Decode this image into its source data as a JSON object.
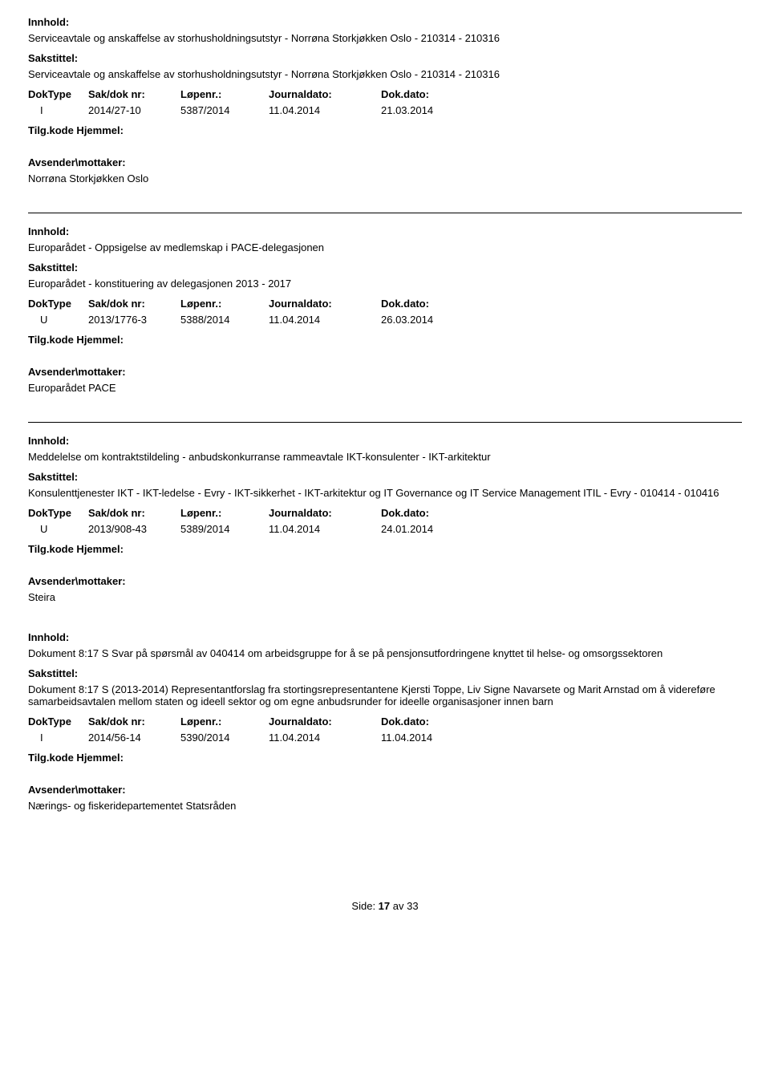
{
  "labels": {
    "innhold": "Innhold:",
    "sakstittel": "Sakstittel:",
    "doktype": "DokType",
    "sakdok": "Sak/dok nr:",
    "lopenr": "Løpenr.:",
    "journaldato": "Journaldato:",
    "dokdato": "Dok.dato:",
    "tilgkode": "Tilg.kode",
    "hjemmel": "Hjemmel:",
    "avsender": "Avsender\\mottaker:"
  },
  "entries": [
    {
      "innhold": "Serviceavtale og anskaffelse av storhusholdningsutstyr - Norrøna Storkjøkken Oslo - 210314 - 210316",
      "sakstittel": "Serviceavtale og anskaffelse av storhusholdningsutstyr - Norrøna Storkjøkken Oslo - 210314 - 210316",
      "doktype": "I",
      "sakdok": "2014/27-10",
      "lopenr": "5387/2014",
      "journaldato": "11.04.2014",
      "dokdato": "21.03.2014",
      "avsender": "Norrøna Storkjøkken Oslo"
    },
    {
      "innhold": "Europarådet - Oppsigelse av medlemskap i PACE-delegasjonen",
      "sakstittel": "Europarådet - konstituering av delegasjonen 2013 - 2017",
      "doktype": "U",
      "sakdok": "2013/1776-3",
      "lopenr": "5388/2014",
      "journaldato": "11.04.2014",
      "dokdato": "26.03.2014",
      "avsender": "Europarådet PACE"
    },
    {
      "innhold": "Meddelelse om kontraktstildeling - anbudskonkurranse rammeavtale IKT-konsulenter - IKT-arkitektur",
      "sakstittel": "Konsulenttjenester IKT - IKT-ledelse - Evry -  IKT-sikkerhet - IKT-arkitektur og IT Governance og IT Service Management ITIL  - Evry  - 010414 - 010416",
      "doktype": "U",
      "sakdok": "2013/908-43",
      "lopenr": "5389/2014",
      "journaldato": "11.04.2014",
      "dokdato": "24.01.2014",
      "avsender": "Steira"
    },
    {
      "innhold": "Dokument 8:17 S Svar på spørsmål av 040414 om arbeidsgruppe for å se på pensjonsutfordringene knyttet til helse- og omsorgssektoren",
      "sakstittel": "Dokument 8:17 S (2013-2014) Representantforslag fra stortingsrepresentantene Kjersti Toppe, Liv Signe Navarsete og Marit Arnstad om å videreføre samarbeidsavtalen mellom staten og ideell sektor og om egne anbudsrunder for ideelle organisasjoner innen barn",
      "doktype": "I",
      "sakdok": "2014/56-14",
      "lopenr": "5390/2014",
      "journaldato": "11.04.2014",
      "dokdato": "11.04.2014",
      "avsender": "Nærings- og fiskeridepartementet Statsråden"
    }
  ],
  "footer": {
    "label": "Side: ",
    "page": "17",
    "of": " av ",
    "total": "33"
  }
}
